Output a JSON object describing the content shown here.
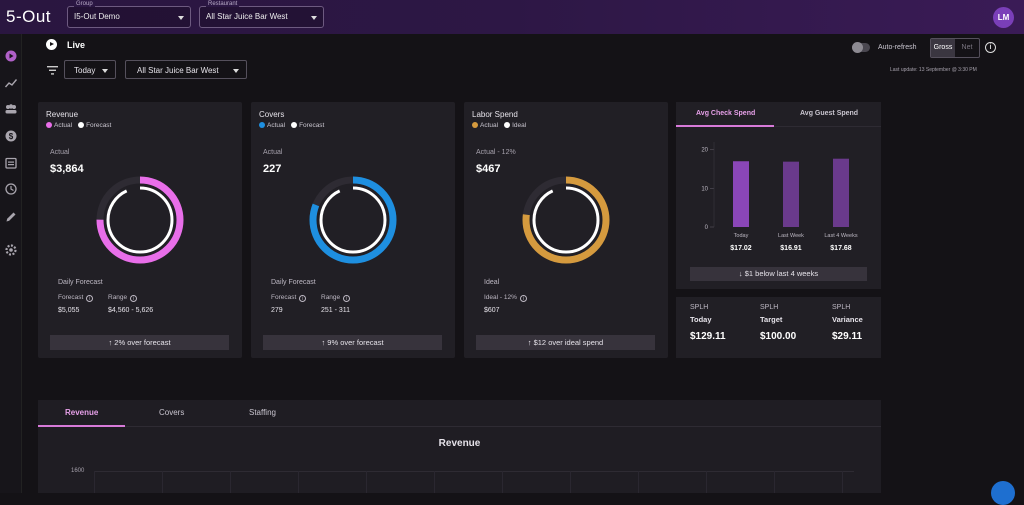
{
  "app": {
    "logo": "5-Out",
    "user_initials": "LM"
  },
  "topbar": {
    "group": {
      "caption": "Group",
      "value": "I5-Out Demo"
    },
    "restaurant": {
      "caption": "Restaurant",
      "value": "All Star Juice Bar West"
    }
  },
  "sidebar_icons": [
    "live-icon",
    "trend-icon",
    "group-icon",
    "dollar-icon",
    "calendar-icon",
    "history-icon",
    "pencil-icon",
    "settings-icon"
  ],
  "header": {
    "live_label": "Live",
    "period": "Today",
    "location": "All Star Juice Bar West",
    "auto_refresh": "Auto-refresh",
    "auto_refresh_on": false,
    "gross": "Gross",
    "net": "Net",
    "last_update": "Last update: 13 September @ 3:30 PM"
  },
  "cards": [
    {
      "title": "Revenue",
      "legend": [
        "Actual",
        "Forecast"
      ],
      "sub": "Actual",
      "big": "$3,864",
      "daily": "Daily Forecast",
      "f_label": "Forecast",
      "r_label": "Range",
      "f_val": "$5,055",
      "r_val": "$4,560 - 5,626",
      "foot": "2% over forecast",
      "color": "#e86ee9",
      "fraction": 0.75
    },
    {
      "title": "Covers",
      "legend": [
        "Actual",
        "Forecast"
      ],
      "sub": "Actual",
      "big": "227",
      "daily": "Daily Forecast",
      "f_label": "Forecast",
      "r_label": "Range",
      "f_val": "279",
      "r_val": "251 - 311",
      "foot": "9% over forecast",
      "color": "#1e8fe0",
      "fraction": 0.81
    },
    {
      "title": "Labor Spend",
      "legend": [
        "Actual",
        "Ideal"
      ],
      "sub": "Actual - 12%",
      "big": "$467",
      "daily": "Ideal",
      "f_label": "Ideal - 12%",
      "r_label": "",
      "f_val": "$607",
      "r_val": "",
      "foot": "$12 over ideal spend",
      "color": "#d59a3e",
      "fraction": 0.77
    }
  ],
  "avg_check": {
    "tab1": "Avg Check Spend",
    "tab2": "Avg Guest Spend",
    "foot": "$1 below last 4 weeks"
  },
  "chart_data": {
    "type": "bar",
    "categories": [
      "Today",
      "Last Week",
      "Last 4 Weeks"
    ],
    "values": [
      17.02,
      16.91,
      17.68
    ],
    "value_labels": [
      "$17.02",
      "$16.91",
      "$17.68"
    ],
    "yticks": [
      0,
      10,
      20
    ],
    "ylim": [
      0,
      22
    ],
    "colors": [
      "#8a46b8",
      "#6a3a8c",
      "#6a3a8c"
    ]
  },
  "splh": [
    {
      "label": "SPLH",
      "sub": "Today",
      "value": "$129.11"
    },
    {
      "label": "SPLH",
      "sub": "Target",
      "value": "$100.00"
    },
    {
      "label": "SPLH",
      "sub": "Variance",
      "value": "$29.11"
    }
  ],
  "bottom": {
    "tabs": [
      "Revenue",
      "Covers",
      "Staffing"
    ],
    "chart_title": "Revenue",
    "y_tick": "1600"
  }
}
